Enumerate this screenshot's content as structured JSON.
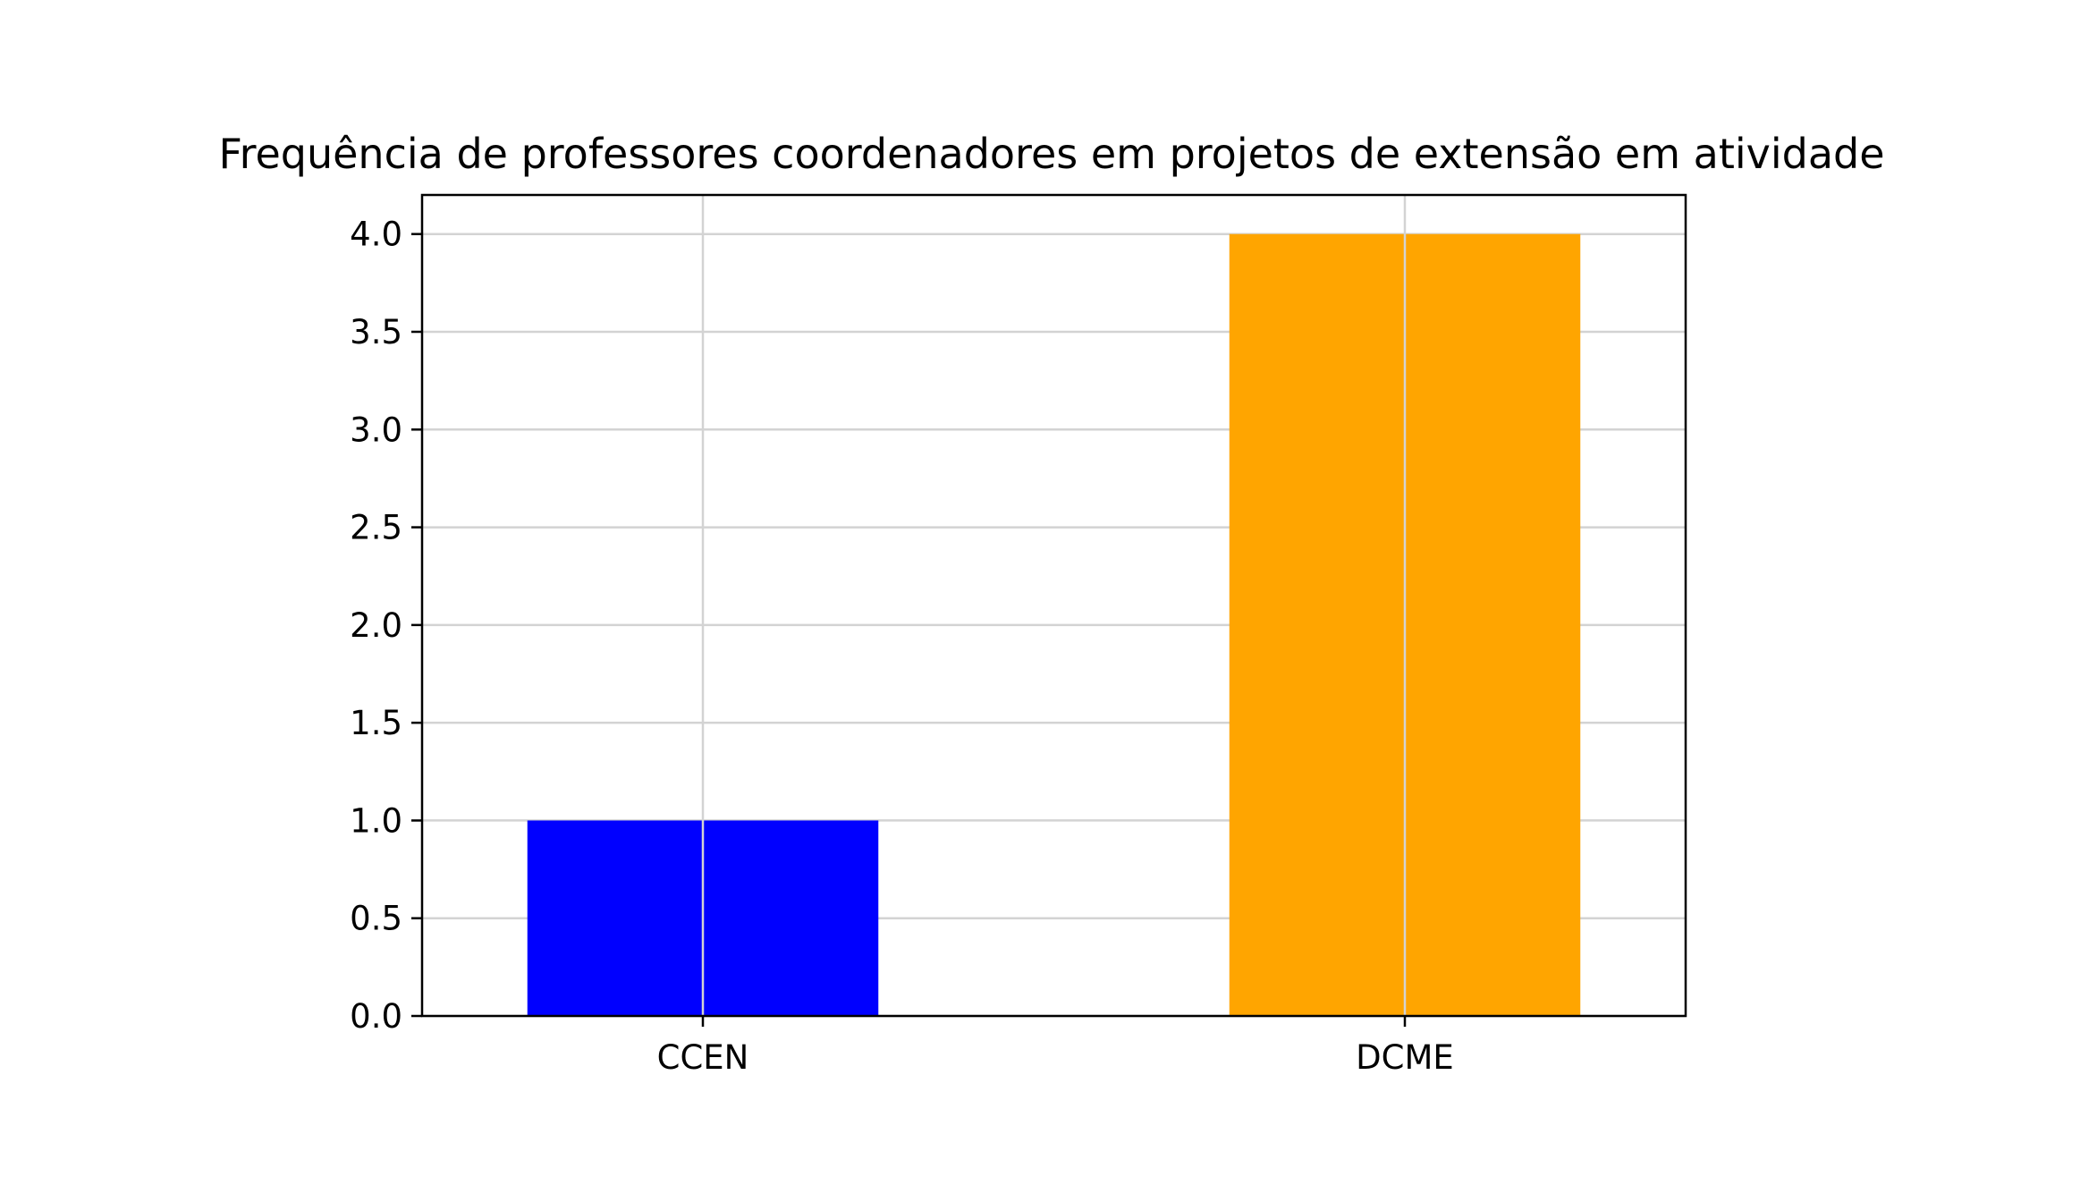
{
  "chart_data": {
    "type": "bar",
    "title": "Frequência de professores coordenadores em projetos de extensão em atividade",
    "xlabel": "",
    "ylabel": "",
    "categories": [
      "CCEN",
      "DCME"
    ],
    "values": [
      1,
      4
    ],
    "bar_colors": [
      "#0000ff",
      "#ffa500"
    ],
    "ylim": [
      0,
      4.2
    ],
    "yticks": [
      0.0,
      0.5,
      1.0,
      1.5,
      2.0,
      2.5,
      3.0,
      3.5,
      4.0
    ],
    "ytick_labels": [
      "0.0",
      "0.5",
      "1.0",
      "1.5",
      "2.0",
      "2.5",
      "3.0",
      "3.5",
      "4.0"
    ],
    "grid": true,
    "grid_color": "#d3d3d3",
    "legend": "none"
  }
}
